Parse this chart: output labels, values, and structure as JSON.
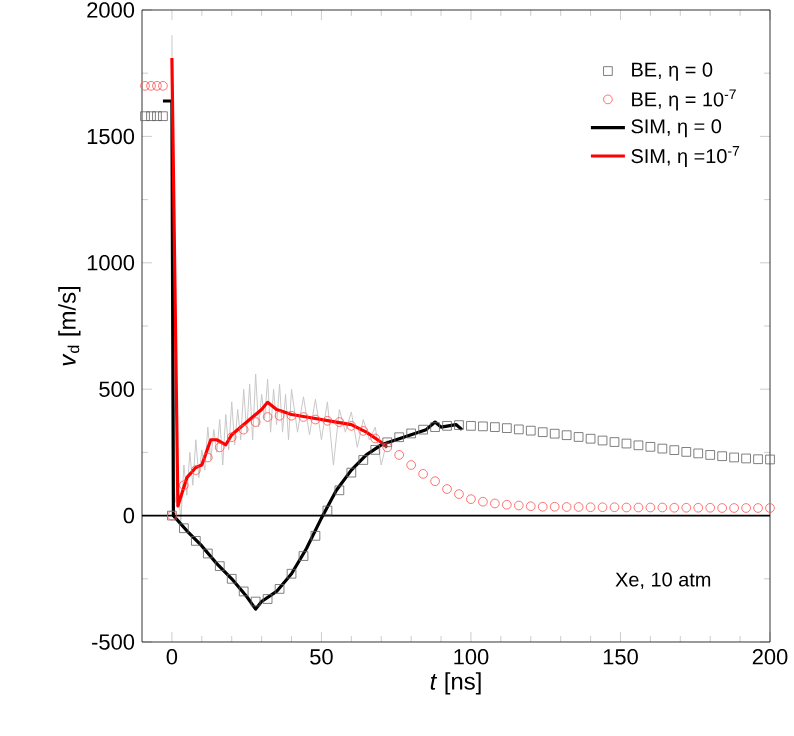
{
  "chart_data": {
    "type": "line",
    "xlabel": "*t* [ns]",
    "ylabel": "*v*$_{d}$ [m/s]",
    "xlim": [
      -10,
      200
    ],
    "ylim": [
      -500,
      2000
    ],
    "xticks": [
      0,
      50,
      100,
      150,
      200
    ],
    "yticks": [
      -500,
      0,
      500,
      1000,
      1500,
      2000
    ],
    "legend": "top right",
    "grid": false,
    "ref_lines": [
      {
        "axis": "y",
        "value": 0,
        "color": "#000000"
      }
    ],
    "annotations": [
      "Xe, 10 atm"
    ],
    "series": [
      {
        "color": "#c8c8c8",
        "x": [
          0,
          0.5,
          1,
          2,
          3,
          4,
          5,
          6,
          7,
          8,
          9,
          10,
          11,
          12,
          13,
          14,
          15,
          16,
          17,
          18,
          19,
          20,
          21,
          22,
          23,
          24,
          25,
          26,
          27,
          28,
          29,
          30,
          31,
          32,
          33,
          34,
          35,
          36,
          37,
          38,
          39,
          40,
          42,
          44,
          46,
          48,
          50,
          52,
          54,
          56,
          58,
          60,
          62,
          64,
          66,
          68,
          70,
          72
        ],
        "values": [
          1900,
          null,
          50,
          120,
          -20,
          200,
          80,
          250,
          120,
          300,
          150,
          260,
          180,
          350,
          220,
          340,
          250,
          380,
          200,
          400,
          260,
          450,
          280,
          420,
          300,
          500,
          330,
          520,
          300,
          560,
          350,
          480,
          380,
          540,
          330,
          500,
          360,
          520,
          330,
          480,
          300,
          500,
          330,
          470,
          320,
          460,
          300,
          450,
          200,
          420,
          330,
          410,
          270,
          380,
          300,
          350,
          200,
          300
        ]
      },
      {
        "type": "scatter",
        "name": "BE, η =  0",
        "color": "#606060",
        "marker": "square",
        "x": [
          -9,
          -7,
          -5,
          -3,
          0,
          4,
          8,
          12,
          16,
          20,
          24,
          28,
          32,
          36,
          40,
          44,
          48,
          52,
          56,
          60,
          64,
          68,
          72,
          76,
          80,
          84,
          88,
          92,
          96,
          100,
          104,
          108,
          112,
          116,
          120,
          124,
          128,
          132,
          136,
          140,
          144,
          148,
          152,
          156,
          160,
          164,
          168,
          172,
          176,
          180,
          184,
          188,
          192,
          196,
          200
        ],
        "values": [
          1580,
          1580,
          1580,
          1580,
          0,
          -50,
          -100,
          -150,
          -200,
          -250,
          -300,
          -340,
          -330,
          -290,
          -230,
          -160,
          -80,
          20,
          100,
          170,
          220,
          260,
          290,
          310,
          325,
          340,
          350,
          355,
          358,
          355,
          353,
          350,
          346,
          341,
          336,
          330,
          324,
          318,
          311,
          304,
          297,
          291,
          285,
          278,
          272,
          265,
          259,
          252,
          246,
          240,
          235,
          230,
          226,
          223,
          222
        ]
      },
      {
        "type": "scatter",
        "name": "BE, η = 10$^{-7}$",
        "color": "#ff5050",
        "marker": "circle",
        "x": [
          -9,
          -7,
          -5,
          -3,
          0,
          4,
          8,
          12,
          16,
          20,
          24,
          28,
          32,
          36,
          40,
          44,
          48,
          52,
          56,
          60,
          64,
          68,
          72,
          76,
          80,
          84,
          88,
          92,
          96,
          100,
          104,
          108,
          112,
          116,
          120,
          124,
          128,
          132,
          136,
          140,
          144,
          148,
          152,
          156,
          160,
          164,
          168,
          172,
          176,
          180,
          184,
          188,
          192,
          196,
          200
        ],
        "values": [
          1700,
          1700,
          1700,
          1700,
          0,
          120,
          180,
          230,
          270,
          310,
          340,
          370,
          390,
          395,
          395,
          390,
          380,
          375,
          370,
          355,
          335,
          305,
          270,
          240,
          200,
          165,
          136,
          105,
          85,
          65,
          55,
          48,
          43,
          40,
          37,
          35,
          35,
          34,
          34,
          33,
          33,
          33,
          32,
          32,
          32,
          32,
          31,
          31,
          31,
          31,
          30,
          30,
          30,
          30,
          30
        ]
      },
      {
        "name": "SIM, η =  0",
        "color": "#000000",
        "x": [
          -3,
          -1,
          0,
          0.5,
          2,
          5,
          10,
          15,
          20,
          25,
          28,
          30,
          35,
          40,
          45,
          50,
          55,
          60,
          65,
          70,
          75,
          80,
          85,
          88,
          90,
          95,
          97
        ],
        "values": [
          1640,
          1640,
          1640,
          0,
          -20,
          -60,
          -120,
          -190,
          -250,
          -320,
          -370,
          -340,
          -300,
          -230,
          -130,
          -10,
          100,
          180,
          240,
          280,
          300,
          320,
          340,
          370,
          350,
          360,
          340
        ]
      },
      {
        "name": "SIM, η =10$^{-7}$",
        "color": "#ff0000",
        "x": [
          0,
          2,
          5,
          8,
          10,
          13,
          15,
          18,
          20,
          25,
          30,
          32,
          35,
          40,
          45,
          50,
          55,
          60,
          65,
          70,
          72
        ],
        "values": [
          1810,
          38,
          150,
          190,
          200,
          300,
          300,
          280,
          320,
          370,
          420,
          448,
          420,
          400,
          390,
          380,
          370,
          360,
          330,
          290,
          270
        ]
      }
    ]
  }
}
